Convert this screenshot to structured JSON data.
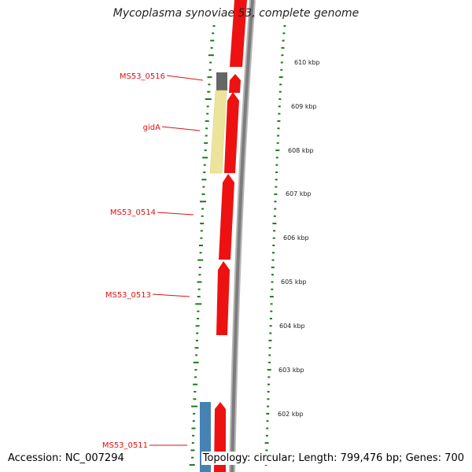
{
  "title": "Mycoplasma synoviae 53, complete genome",
  "accession": "Accession: NC_007294",
  "topology": "Topology: circular; Length: 799,476 bp; Genes: 700",
  "colors": {
    "cds": "#ee1111",
    "gene_label": "#dd1111",
    "backbone": "#8a8a8a",
    "gc_skew": "#1a7a1a",
    "yellow_feature": "#ece49a",
    "grey_feature": "#666666",
    "blue_feature": "#4682b4"
  },
  "scale_labels": [
    "610 kbp",
    "609 kbp",
    "608 kbp",
    "607 kbp",
    "606 kbp",
    "605 kbp",
    "604 kbp",
    "603 kbp",
    "602 kbp"
  ],
  "gene_labels": [
    {
      "name": "MS53_0516",
      "color": "#dd1111"
    },
    {
      "name": "gidA",
      "color": "#dd1111"
    },
    {
      "name": "MS53_0514",
      "color": "#dd1111"
    },
    {
      "name": "MS53_0513",
      "color": "#dd1111"
    },
    {
      "name": "MS53_0511",
      "color": "#dd1111"
    }
  ]
}
